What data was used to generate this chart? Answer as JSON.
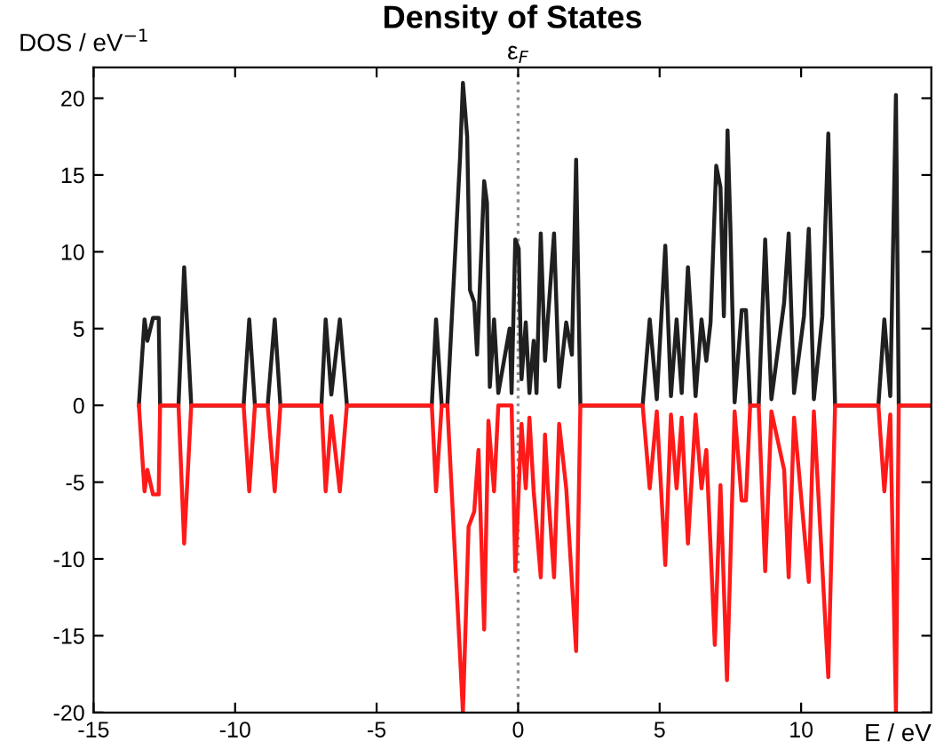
{
  "chart_data": {
    "type": "line",
    "title": "Density of States",
    "xlabel": "E / eV",
    "ylabel": "DOS / eV$^{−1}$",
    "xlim": [
      -15,
      14.6
    ],
    "ylim": [
      -20,
      22
    ],
    "xticks": [
      -15,
      -10,
      -5,
      0,
      5,
      10
    ],
    "yticks": [
      -20,
      -15,
      -10,
      -5,
      0,
      5,
      10,
      15,
      20
    ],
    "grid": false,
    "marker": "none",
    "line_style": "solid",
    "ref_lines": [
      {
        "axis": "x",
        "value": 0,
        "label": "ε$_{F}$",
        "color": "#909090",
        "line_style": "dotted"
      }
    ],
    "series": [
      {
        "color": "#202020",
        "x": [
          -13.4,
          -13.2,
          -13.1,
          -12.9,
          -12.7,
          -12.65,
          -12.0,
          -11.8,
          -11.55,
          -9.7,
          -9.5,
          -9.3,
          -8.85,
          -8.6,
          -8.4,
          -6.95,
          -6.8,
          -6.6,
          -6.3,
          -6.05,
          -3.05,
          -2.9,
          -2.7,
          -2.5,
          -2.05,
          -1.95,
          -1.8,
          -1.7,
          -1.55,
          -1.45,
          -1.2,
          -1.1,
          -1.0,
          -0.85,
          -0.7,
          -0.3,
          -0.23,
          -0.1,
          0.02,
          0.12,
          0.27,
          0.4,
          0.55,
          0.65,
          0.8,
          0.95,
          1.05,
          1.27,
          1.45,
          1.7,
          1.9,
          2.05,
          2.2,
          4.4,
          4.65,
          4.9,
          5.2,
          5.4,
          5.6,
          5.78,
          6.0,
          6.15,
          6.27,
          6.48,
          6.65,
          6.8,
          7.0,
          7.15,
          7.27,
          7.4,
          7.5,
          7.65,
          7.9,
          8.05,
          8.2,
          8.5,
          8.73,
          8.95,
          9.4,
          9.56,
          9.75,
          10.1,
          10.27,
          10.45,
          10.75,
          10.96,
          11.2,
          12.73,
          12.94,
          13.15,
          13.35,
          13.45,
          14.6
        ],
        "values": [
          0,
          5.6,
          4.2,
          5.7,
          5.7,
          0,
          0,
          9.0,
          0,
          0,
          5.6,
          0,
          0,
          5.6,
          0,
          0,
          5.6,
          0.7,
          5.6,
          0,
          0,
          5.6,
          0,
          0,
          16.2,
          21.0,
          17.5,
          7.5,
          6.7,
          3.3,
          14.6,
          13.2,
          1.2,
          5.6,
          0.8,
          5.0,
          0.8,
          10.8,
          10.2,
          1.7,
          5.4,
          0.8,
          4.2,
          0.8,
          11.2,
          2.9,
          5.6,
          11.2,
          1.2,
          5.4,
          3.3,
          16.0,
          0,
          0,
          5.6,
          0.4,
          10.4,
          0.6,
          5.6,
          0.8,
          9.0,
          4.6,
          0.6,
          5.6,
          2.9,
          5.4,
          15.6,
          14.2,
          5.8,
          17.9,
          11.7,
          0.2,
          6.2,
          6.2,
          0,
          0,
          10.8,
          0.4,
          6.7,
          11.2,
          0.8,
          5.8,
          11.5,
          0.4,
          5.8,
          17.7,
          0,
          0,
          5.6,
          0.6,
          20.2,
          0,
          0
        ]
      },
      {
        "color": "#ff1a1a",
        "x": [
          -13.4,
          -13.2,
          -13.1,
          -12.9,
          -12.7,
          -12.65,
          -12.0,
          -11.8,
          -11.55,
          -9.7,
          -9.5,
          -9.3,
          -8.85,
          -8.6,
          -8.4,
          -6.95,
          -6.8,
          -6.6,
          -6.3,
          -6.05,
          -3.05,
          -2.9,
          -2.7,
          -2.5,
          -1.95,
          -1.75,
          -1.55,
          -1.4,
          -1.2,
          -1.05,
          -0.85,
          -0.7,
          -0.23,
          -0.1,
          0.12,
          0.27,
          0.4,
          0.55,
          0.8,
          0.95,
          1.05,
          1.27,
          1.45,
          1.7,
          2.05,
          2.2,
          4.4,
          4.65,
          4.9,
          5.2,
          5.4,
          5.6,
          5.78,
          6.0,
          6.27,
          6.48,
          6.65,
          6.95,
          7.15,
          7.38,
          7.65,
          7.9,
          8.05,
          8.2,
          8.5,
          8.73,
          8.95,
          9.4,
          9.56,
          9.75,
          10.27,
          10.45,
          10.96,
          11.2,
          12.73,
          12.94,
          13.15,
          13.35,
          13.45,
          14.6
        ],
        "values": [
          0,
          -5.6,
          -4.2,
          -5.8,
          -5.8,
          0,
          0,
          -9.0,
          0,
          0,
          -5.6,
          0,
          0,
          -5.6,
          0,
          0,
          -5.6,
          -0.7,
          -5.6,
          0,
          0,
          -5.6,
          0,
          0,
          -20,
          -7.9,
          -6.9,
          -2.9,
          -14.6,
          -1.0,
          -5.6,
          0,
          0,
          -10.8,
          -1.2,
          -5.4,
          -0.8,
          -5.6,
          -11.2,
          -1.9,
          -5.4,
          -11.2,
          -1.2,
          -5.4,
          -16.0,
          0,
          0,
          -5.4,
          -0.4,
          -10.4,
          -0.6,
          -5.4,
          -0.8,
          -9.0,
          -0.6,
          -5.4,
          -2.9,
          -15.6,
          -5.2,
          -17.9,
          -0.4,
          -6.2,
          -6.2,
          0,
          0,
          -10.8,
          -0.4,
          -4.2,
          -11.2,
          -0.8,
          -11.5,
          -0.4,
          -17.7,
          0,
          0,
          -5.6,
          -0.6,
          -20,
          0,
          0
        ]
      }
    ]
  }
}
